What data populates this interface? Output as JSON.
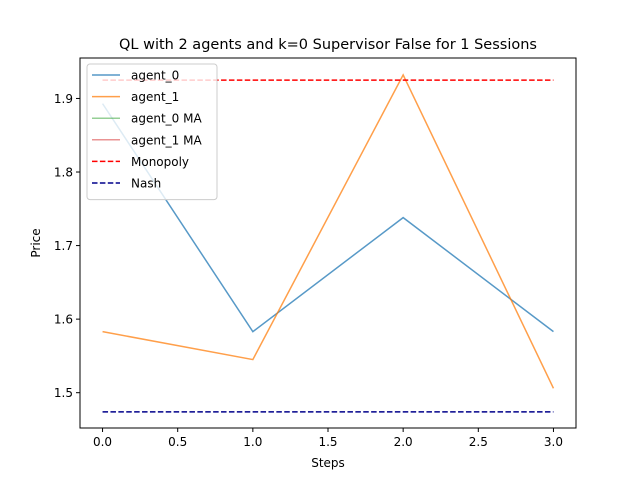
{
  "chart_data": {
    "type": "line",
    "title": "QL with 2 agents and k=0 Supervisor False for 1 Sessions",
    "xlabel": "Steps",
    "ylabel": "Price",
    "xlim": [
      -0.15,
      3.15
    ],
    "ylim": [
      1.452,
      1.955
    ],
    "x_ticks": [
      0.0,
      0.5,
      1.0,
      1.5,
      2.0,
      2.5,
      3.0
    ],
    "x_tick_labels": [
      "0.0",
      "0.5",
      "1.0",
      "1.5",
      "2.0",
      "2.5",
      "3.0"
    ],
    "y_ticks": [
      1.5,
      1.6,
      1.7,
      1.8,
      1.9
    ],
    "y_tick_labels": [
      "1.5",
      "1.6",
      "1.7",
      "1.8",
      "1.9"
    ],
    "grid": false,
    "legend_position": "top-left",
    "series": [
      {
        "name": "agent_0",
        "color": "#1f77b4",
        "style": "solid",
        "alpha": 0.75,
        "x": [
          0,
          1,
          2,
          3
        ],
        "values": [
          1.893,
          1.583,
          1.738,
          1.583
        ]
      },
      {
        "name": "agent_1",
        "color": "#ff7f0e",
        "style": "solid",
        "alpha": 0.75,
        "x": [
          0,
          1,
          2,
          3
        ],
        "values": [
          1.583,
          1.545,
          1.932,
          1.506
        ]
      },
      {
        "name": "agent_0 MA",
        "color": "#2ca02c",
        "style": "solid",
        "alpha": 0.5,
        "x": [],
        "values": []
      },
      {
        "name": "agent_1 MA",
        "color": "#d62728",
        "style": "solid",
        "alpha": 0.5,
        "x": [],
        "values": []
      },
      {
        "name": "Monopoly",
        "color": "#ff0000",
        "style": "dashed",
        "alpha": 1,
        "x": [
          0,
          3
        ],
        "values": [
          1.925,
          1.925
        ]
      },
      {
        "name": "Nash",
        "color": "#00008b",
        "style": "dashed",
        "alpha": 1,
        "x": [
          0,
          3
        ],
        "values": [
          1.474,
          1.474
        ]
      }
    ]
  }
}
